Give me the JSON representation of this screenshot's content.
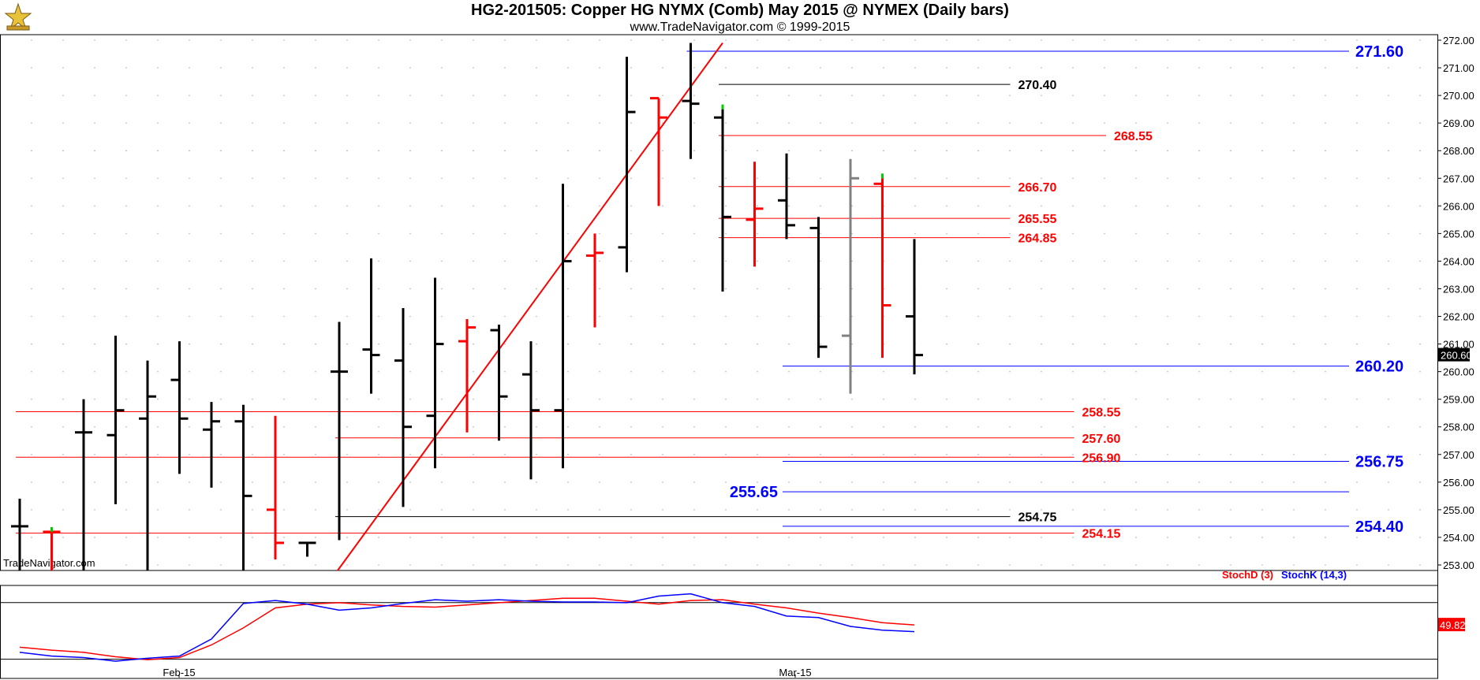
{
  "header": {
    "title": "HG2-201505:  Copper HG NYMX (Comb) May 2015 @ NYMEX  (Daily bars)",
    "subtitle": "www.TradeNavigator.com © 1999-2015",
    "watermark": "TradeNavigator.com"
  },
  "colors": {
    "up_bar": "#000000",
    "down_bar": "#ff0000",
    "neutral_bar": "#808080",
    "red_level": "#ff0000",
    "blue_level": "#0000ff",
    "black_level": "#000000",
    "stoch_d": "#ff0000",
    "stoch_k": "#0000ff",
    "tick_green": "#00cc00"
  },
  "chart_data": [
    {
      "type": "bar",
      "subtype": "ohlc",
      "ylim": [
        252.8,
        272.2
      ],
      "y_ticks": [
        "253.00",
        "254.00",
        "255.00",
        "256.00",
        "257.00",
        "258.00",
        "259.00",
        "260.00",
        "261.00",
        "262.00",
        "263.00",
        "264.00",
        "265.00",
        "266.00",
        "267.00",
        "268.00",
        "269.00",
        "270.00",
        "271.00",
        "272.00"
      ],
      "x_ticks": [
        "Feb-15",
        "Mar-15"
      ],
      "last_price_label": "260.60",
      "bars": [
        {
          "open": 254.4,
          "high": 255.4,
          "low": 252.8,
          "close": 254.4,
          "color": "up"
        },
        {
          "open": 254.2,
          "high": 254.2,
          "low": 252.8,
          "close": 254.2,
          "color": "down",
          "tick": "green"
        },
        {
          "open": 257.8,
          "high": 259.0,
          "low": 252.8,
          "close": 257.8,
          "color": "up"
        },
        {
          "open": 257.7,
          "high": 261.3,
          "low": 255.2,
          "close": 258.6,
          "color": "up"
        },
        {
          "open": 258.3,
          "high": 260.4,
          "low": 252.8,
          "close": 259.1,
          "color": "up"
        },
        {
          "open": 259.7,
          "high": 261.1,
          "low": 256.3,
          "close": 258.3,
          "color": "up"
        },
        {
          "open": 257.9,
          "high": 258.9,
          "low": 255.8,
          "close": 258.2,
          "color": "up"
        },
        {
          "open": 258.2,
          "high": 258.8,
          "low": 252.8,
          "close": 255.5,
          "color": "up"
        },
        {
          "open": 255.0,
          "high": 258.4,
          "low": 253.2,
          "close": 253.8,
          "color": "down"
        },
        {
          "open": 253.8,
          "high": 253.8,
          "low": 253.3,
          "close": 253.8,
          "color": "up"
        },
        {
          "open": 260.0,
          "high": 261.8,
          "low": 253.9,
          "close": 260.0,
          "color": "up"
        },
        {
          "open": 260.8,
          "high": 264.1,
          "low": 259.2,
          "close": 260.6,
          "color": "up"
        },
        {
          "open": 260.4,
          "high": 262.3,
          "low": 255.1,
          "close": 258.0,
          "color": "up"
        },
        {
          "open": 258.4,
          "high": 263.4,
          "low": 256.5,
          "close": 261.0,
          "color": "up"
        },
        {
          "open": 261.1,
          "high": 261.9,
          "low": 257.8,
          "close": 261.6,
          "color": "down"
        },
        {
          "open": 261.5,
          "high": 261.7,
          "low": 257.5,
          "close": 259.1,
          "color": "up"
        },
        {
          "open": 259.9,
          "high": 261.1,
          "low": 256.1,
          "close": 258.6,
          "color": "up"
        },
        {
          "open": 258.6,
          "high": 266.8,
          "low": 256.5,
          "close": 264.0,
          "color": "up"
        },
        {
          "open": 264.2,
          "high": 265.0,
          "low": 261.6,
          "close": 264.3,
          "color": "down"
        },
        {
          "open": 264.5,
          "high": 271.4,
          "low": 263.6,
          "close": 269.4,
          "color": "up"
        },
        {
          "open": 269.9,
          "high": 269.9,
          "low": 266.0,
          "close": 269.2,
          "color": "down"
        },
        {
          "open": 269.8,
          "high": 271.9,
          "low": 267.7,
          "close": 269.7,
          "color": "up"
        },
        {
          "open": 269.2,
          "high": 269.5,
          "low": 262.9,
          "close": 265.6,
          "color": "up",
          "tick": "green"
        },
        {
          "open": 265.5,
          "high": 267.6,
          "low": 263.8,
          "close": 265.9,
          "color": "down"
        },
        {
          "open": 266.2,
          "high": 267.9,
          "low": 264.8,
          "close": 265.3,
          "color": "up"
        },
        {
          "open": 265.2,
          "high": 265.6,
          "low": 260.5,
          "close": 260.9,
          "color": "up"
        },
        {
          "open": 261.3,
          "high": 267.7,
          "low": 259.2,
          "close": 267.0,
          "color": "neutral"
        },
        {
          "open": 266.8,
          "high": 267.0,
          "low": 260.5,
          "close": 262.4,
          "color": "down",
          "tick": "green"
        },
        {
          "open": 262.0,
          "high": 264.8,
          "low": 259.9,
          "close": 260.6,
          "color": "up"
        }
      ],
      "levels": [
        {
          "value": 271.6,
          "label": "271.60",
          "color": "blue",
          "from_bar": 21,
          "to_end": true
        },
        {
          "value": 270.4,
          "label": "270.40",
          "color": "black",
          "from_bar": 22,
          "to_bar": 31
        },
        {
          "value": 268.55,
          "label": "268.55",
          "color": "red",
          "from_bar": 22,
          "to_bar": 34
        },
        {
          "value": 266.7,
          "label": "266.70",
          "color": "red",
          "from_bar": 22,
          "to_bar": 31
        },
        {
          "value": 265.55,
          "label": "265.55",
          "color": "red",
          "from_bar": 22,
          "to_bar": 31
        },
        {
          "value": 264.85,
          "label": "264.85",
          "color": "red",
          "from_bar": 22,
          "to_bar": 31
        },
        {
          "value": 260.2,
          "label": "260.20",
          "color": "blue",
          "from_bar": 24,
          "to_end": true
        },
        {
          "value": 258.55,
          "label": "258.55",
          "color": "red",
          "from_bar": 0,
          "to_bar": 33
        },
        {
          "value": 257.6,
          "label": "257.60",
          "color": "red",
          "from_bar": 10,
          "to_bar": 33
        },
        {
          "value": 256.9,
          "label": "256.90",
          "color": "red",
          "from_bar": 0,
          "to_bar": 33
        },
        {
          "value": 256.75,
          "label": "256.75",
          "color": "blue",
          "from_bar": 24,
          "to_end": true
        },
        {
          "value": 255.65,
          "label": "255.65",
          "color": "blue",
          "from_bar": 24,
          "to_end": true,
          "label_left": true
        },
        {
          "value": 254.75,
          "label": "254.75",
          "color": "black",
          "from_bar": 10,
          "to_bar": 31
        },
        {
          "value": 254.4,
          "label": "254.40",
          "color": "blue",
          "from_bar": 24,
          "to_end": true
        },
        {
          "value": 254.15,
          "label": "254.15",
          "color": "red",
          "from_bar": 0,
          "to_bar": 33
        }
      ],
      "trendline": {
        "from": [
          10,
          252.8
        ],
        "to": [
          22,
          271.9
        ],
        "color": "red"
      }
    },
    {
      "type": "line",
      "legend": [
        "StochD (3)",
        "StochK (14,3)"
      ],
      "ylim": [
        0,
        100
      ],
      "value_label": "49.82",
      "series": [
        {
          "name": "StochD (3)",
          "color": "red",
          "values": [
            22,
            18,
            15,
            9,
            5,
            8,
            25,
            48,
            75,
            80,
            82,
            79,
            77,
            76,
            79,
            82,
            85,
            88,
            88,
            84,
            80,
            85,
            86,
            80,
            75,
            68,
            62,
            55,
            52
          ]
        },
        {
          "name": "StochK (14,3)",
          "color": "blue",
          "values": [
            15,
            10,
            8,
            3,
            7,
            10,
            33,
            81,
            85,
            80,
            72,
            75,
            81,
            86,
            84,
            86,
            84,
            83,
            83,
            82,
            91,
            94,
            82,
            77,
            64,
            62,
            50,
            45,
            43
          ]
        }
      ]
    }
  ]
}
